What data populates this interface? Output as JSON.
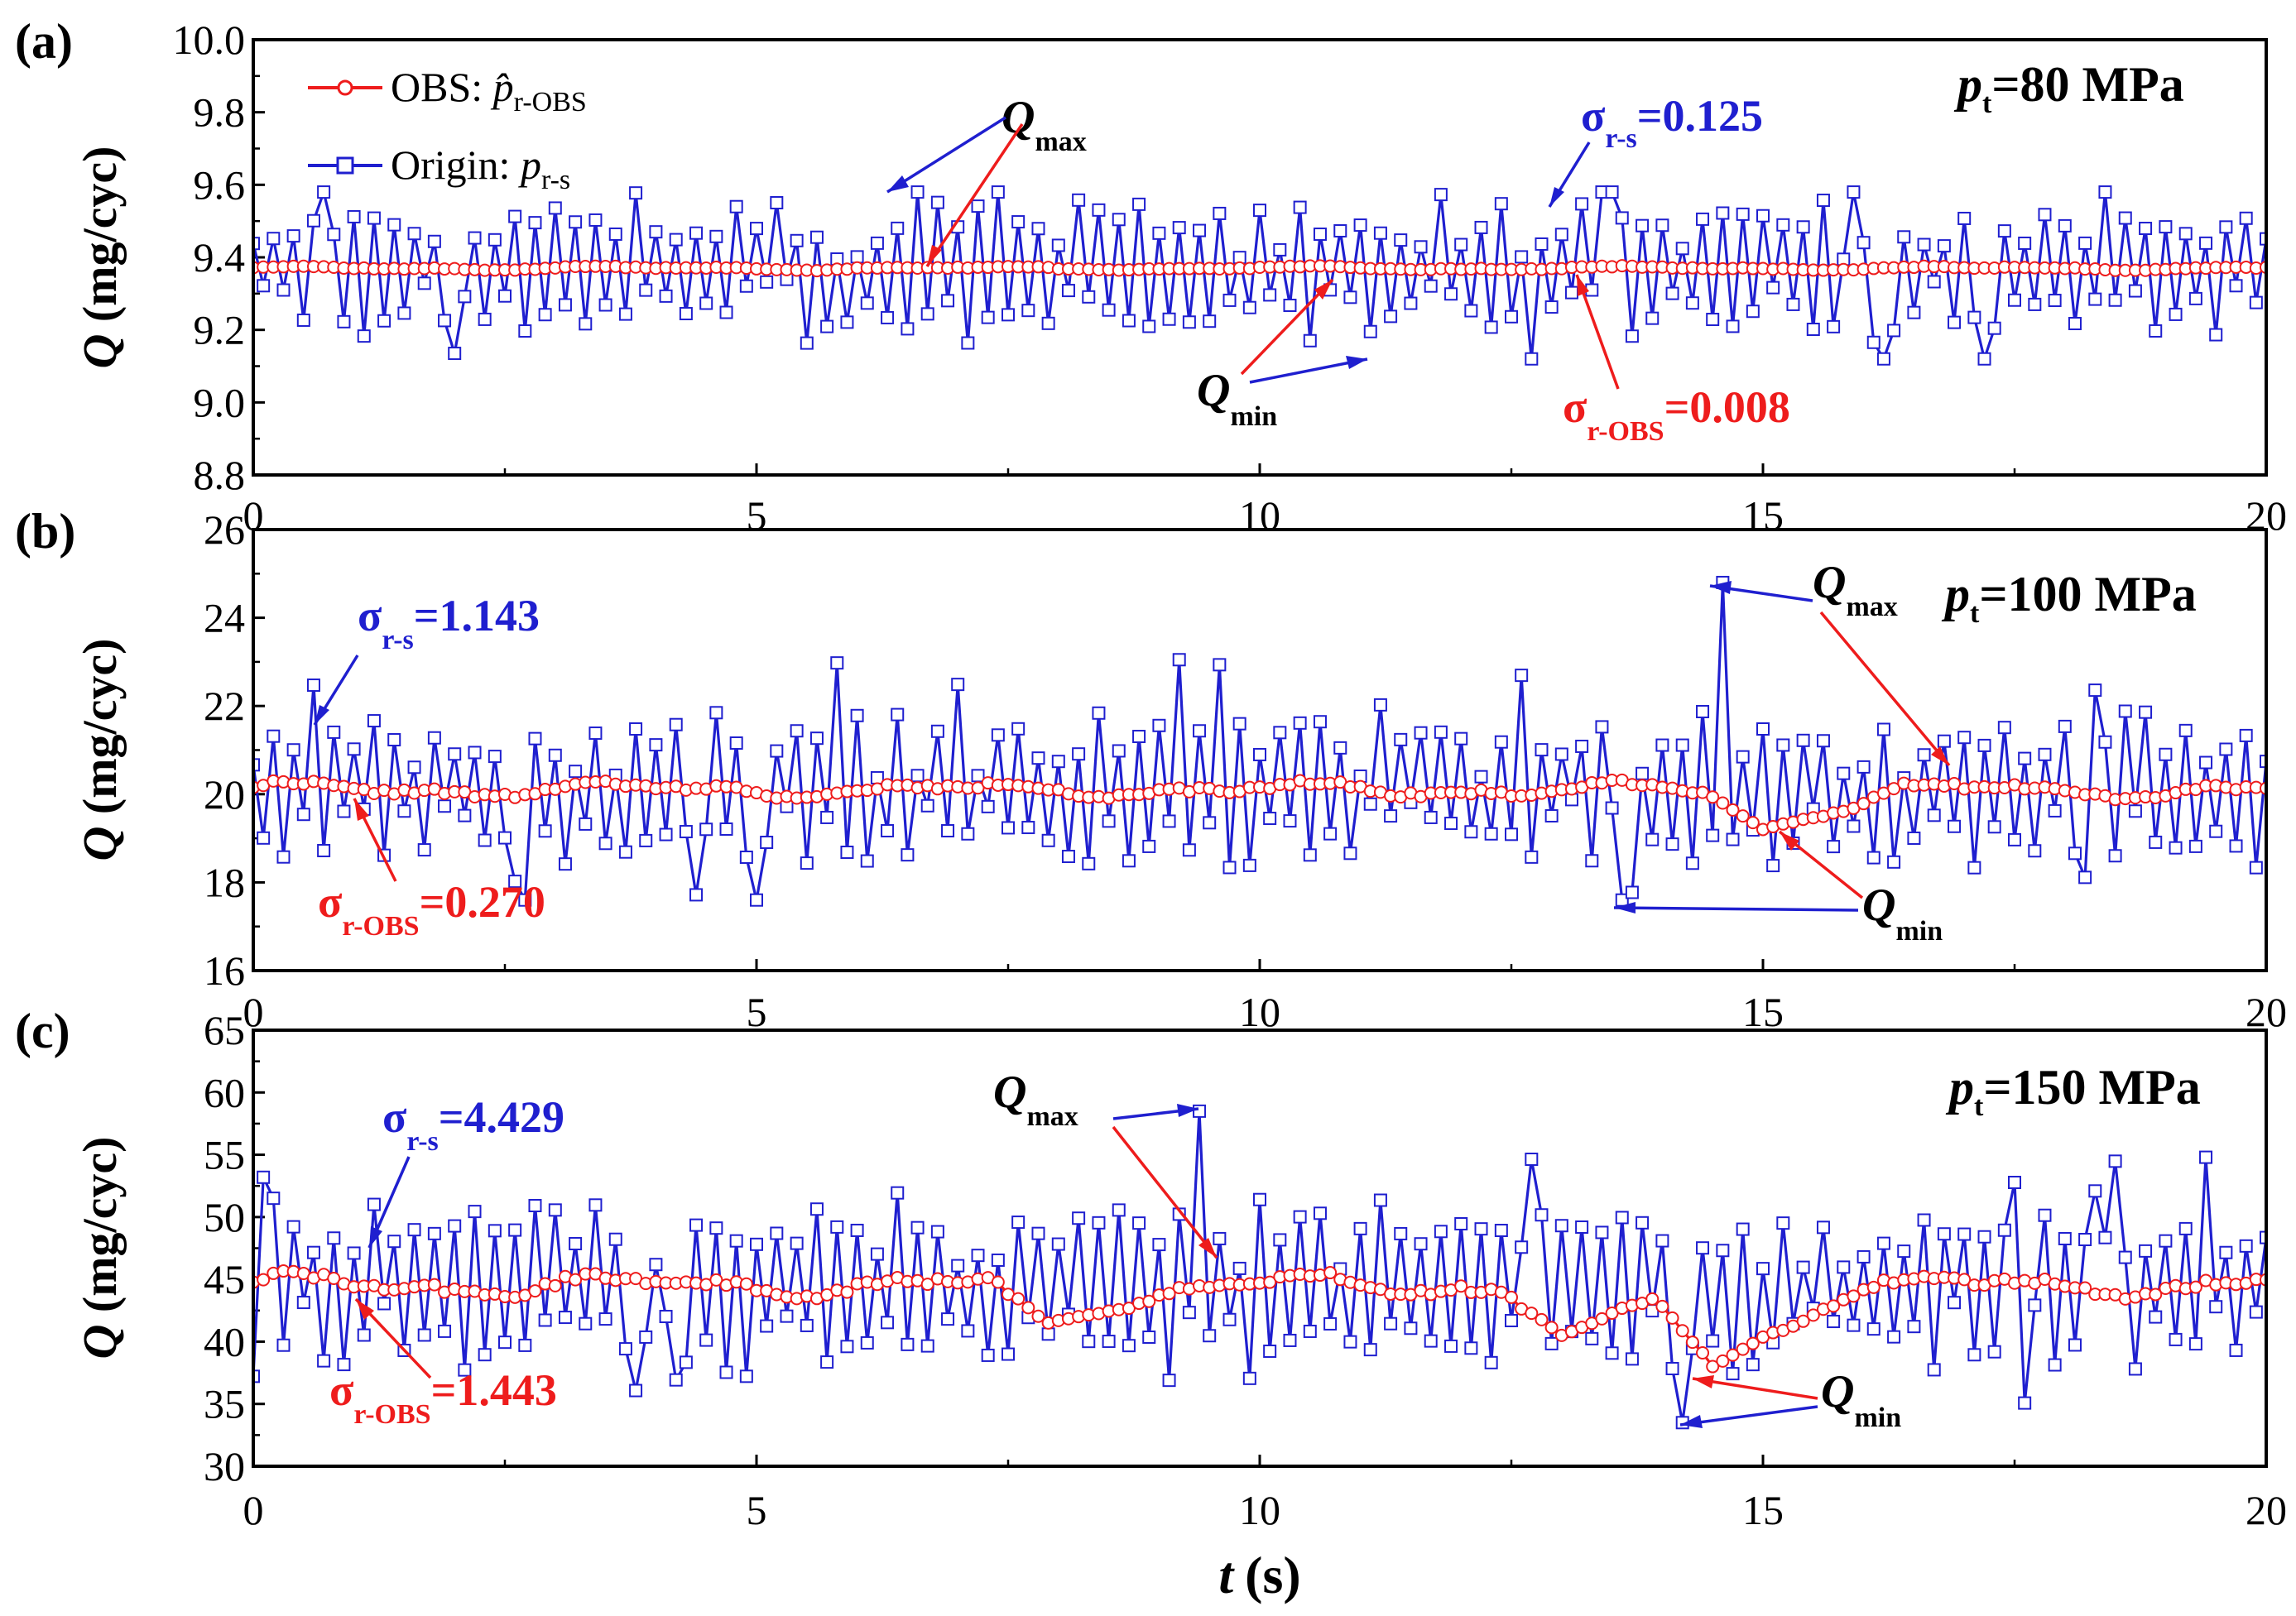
{
  "colors": {
    "series_origin": "#1f1fcf",
    "series_obs": "#ee1c1c",
    "axis": "#000000"
  },
  "shared": {
    "xlabel": "(s)",
    "xlabel_var": "t",
    "ylabel": " (mg/cyc)",
    "ylabel_var": "Q",
    "x_ticks": [
      "0",
      "5",
      "10",
      "15",
      "20"
    ],
    "legend_obs_prefix": "OBS: ",
    "legend_obs_var": "p̂",
    "legend_obs_sub": "r-OBS",
    "legend_origin_prefix": "Origin: ",
    "legend_origin_var": "p",
    "legend_origin_sub": "r-s",
    "q_var": "Q",
    "qmax_sub": "max",
    "qmin_sub": "min",
    "sigma": "σ",
    "sigma_rs_sub": "r-s",
    "sigma_obs_sub": "r-OBS",
    "pt_var": "p",
    "pt_sub": "t"
  },
  "panels": [
    {
      "label": "(a)",
      "pressure": "=80 MPa",
      "sigma_rs_value": "=0.125",
      "sigma_obs_value": "=0.008",
      "y_ticks": [
        "8.8",
        "9.0",
        "9.2",
        "9.4",
        "9.6",
        "9.8",
        "10.0"
      ]
    },
    {
      "label": "(b)",
      "pressure": "=100 MPa",
      "sigma_rs_value": "=1.143",
      "sigma_obs_value": "=0.270",
      "y_ticks": [
        "16",
        "18",
        "20",
        "22",
        "24",
        "26"
      ]
    },
    {
      "label": "(c)",
      "pressure": "=150 MPa",
      "sigma_rs_value": "=4.429",
      "sigma_obs_value": "=1.443",
      "y_ticks": [
        "30",
        "35",
        "40",
        "45",
        "50",
        "55",
        "60",
        "65"
      ]
    }
  ],
  "chart_data": [
    {
      "type": "line",
      "panel": "(a)",
      "title": "pt=80 MPa",
      "xlabel": "t (s)",
      "ylabel": "Q (mg/cyc)",
      "xlim": [
        0,
        20
      ],
      "ylim": [
        8.8,
        10.0
      ],
      "series": [
        {
          "name": "Origin: p r-s",
          "marker": "square",
          "mean": 9.37,
          "sigma": 0.125,
          "min": 9.12,
          "max": 9.58,
          "seed": 11,
          "events": []
        },
        {
          "name": "OBS: p̂ r-OBS",
          "marker": "circle",
          "mean": 9.37,
          "sigma": 0.008,
          "seed": 12,
          "events": []
        }
      ],
      "annotations": [
        {
          "text": "Qmax",
          "x": 6.5,
          "y": 9.58
        },
        {
          "text": "Qmin",
          "x": 11.1,
          "y": 9.12
        },
        {
          "text": "σr-s=0.125",
          "x": 12.9,
          "y": 9.55
        },
        {
          "text": "σr-OBS=0.008",
          "x": 13.2,
          "y": 9.37
        }
      ]
    },
    {
      "type": "line",
      "panel": "(b)",
      "title": "pt=100 MPa",
      "xlabel": "t (s)",
      "ylabel": "Q (mg/cyc)",
      "xlim": [
        0,
        20
      ],
      "ylim": [
        16,
        26
      ],
      "series": [
        {
          "name": "Origin: p r-s",
          "marker": "square",
          "mean": 20.1,
          "sigma": 1.143,
          "min": 17.6,
          "max": 24.8,
          "seed": 21,
          "events": [
            {
              "x": 13.6,
              "value": 17.6
            },
            {
              "x": 14.6,
              "value": 24.8
            }
          ]
        },
        {
          "name": "OBS: p̂ r-OBS",
          "marker": "circle",
          "mean": 20.1,
          "sigma": 0.27,
          "seed": 22,
          "events": [
            {
              "x": 15.0,
              "value": 19.2
            }
          ]
        }
      ],
      "annotations": [
        {
          "text": "Qmax",
          "x": 14.6,
          "y": 24.8
        },
        {
          "text": "Qmin",
          "x": 13.6,
          "y": 17.6
        },
        {
          "text": "σr-s=1.143",
          "x": 0.7,
          "y": 22.0
        },
        {
          "text": "σr-OBS=0.270",
          "x": 0.9,
          "y": 20.4
        }
      ]
    },
    {
      "type": "line",
      "panel": "(c)",
      "title": "pt=150 MPa",
      "xlabel": "t (s)",
      "ylabel": "Q (mg/cyc)",
      "xlim": [
        0,
        20
      ],
      "ylim": [
        30,
        65
      ],
      "series": [
        {
          "name": "Origin: p r-s",
          "marker": "square",
          "mean": 44.5,
          "sigma": 4.429,
          "min": 33.5,
          "max": 58.5,
          "seed": 31,
          "events": [
            {
              "x": 9.4,
              "value": 58.5
            },
            {
              "x": 14.2,
              "value": 33.5
            }
          ]
        },
        {
          "name": "OBS: p̂ r-OBS",
          "marker": "circle",
          "mean": 44.5,
          "sigma": 1.443,
          "seed": 32,
          "events": [
            {
              "x": 7.9,
              "value": 41.5
            },
            {
              "x": 13.0,
              "value": 40.5
            },
            {
              "x": 14.5,
              "value": 38.0
            }
          ]
        }
      ],
      "annotations": [
        {
          "text": "Qmax",
          "x": 9.4,
          "y": 58.5
        },
        {
          "text": "Qmin",
          "x": 14.2,
          "y": 33.5
        },
        {
          "text": "σr-s=4.429",
          "x": 1.2,
          "y": 46.5
        },
        {
          "text": "σr-OBS=1.443",
          "x": 1.1,
          "y": 43.8
        }
      ]
    }
  ]
}
